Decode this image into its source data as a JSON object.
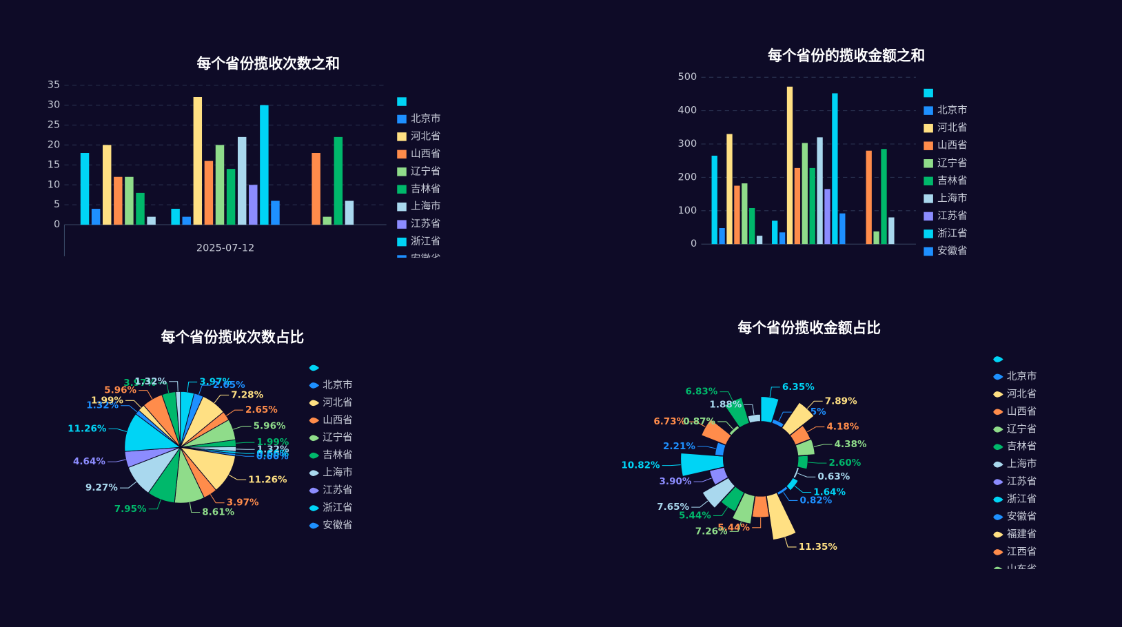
{
  "chart_data": [
    {
      "type": "bar",
      "title": "每个省份揽收次数之和",
      "categories": [
        null,
        "2025-07-12",
        null
      ],
      "ylim": [
        0,
        35
      ],
      "yticks": [
        0,
        5,
        10,
        15,
        20,
        25,
        30,
        35
      ],
      "grid": true,
      "series": [
        {
          "color": "#00d4f5",
          "values": [
            18,
            null,
            null
          ]
        },
        {
          "color": "#1e90ff",
          "values": [
            4,
            null,
            null
          ]
        },
        {
          "color": "#ffe083",
          "values": [
            20,
            null,
            null
          ]
        },
        {
          "color": "#ff8c4b",
          "values": [
            12,
            null,
            null
          ]
        },
        {
          "color": "#8fdc8a",
          "values": [
            12,
            null,
            null
          ]
        },
        {
          "color": "#00b86b",
          "values": [
            8,
            null,
            null
          ]
        },
        {
          "color": "#a9d8ee",
          "values": [
            2,
            null,
            null
          ]
        },
        {
          "color": "#00d4f5",
          "values": [
            null,
            4,
            null
          ]
        },
        {
          "color": "#1e90ff",
          "values": [
            null,
            2,
            null
          ]
        },
        {
          "color": "#ffe083",
          "values": [
            null,
            32,
            null
          ]
        },
        {
          "color": "#ff8c4b",
          "values": [
            null,
            16,
            null
          ]
        },
        {
          "color": "#8fdc8a",
          "values": [
            null,
            20,
            null
          ]
        },
        {
          "color": "#00b86b",
          "values": [
            null,
            14,
            null
          ]
        },
        {
          "color": "#a9d8ee",
          "values": [
            null,
            22,
            null
          ]
        },
        {
          "color": "#8c8cff",
          "values": [
            null,
            10,
            null
          ]
        },
        {
          "color": "#00d4f5",
          "values": [
            null,
            30,
            null
          ]
        },
        {
          "color": "#1e90ff",
          "values": [
            null,
            6,
            null
          ]
        },
        {
          "color": "#ff8c4b",
          "values": [
            null,
            null,
            18
          ]
        },
        {
          "color": "#8fdc8a",
          "values": [
            null,
            null,
            2
          ]
        },
        {
          "color": "#00b86b",
          "values": [
            null,
            null,
            22
          ]
        },
        {
          "color": "#a9d8ee",
          "values": [
            null,
            null,
            6
          ]
        }
      ],
      "legend": [
        {
          "color": "#00d4f5"
        },
        {
          "name": "北京市",
          "color": "#1e90ff"
        },
        {
          "name": "河北省",
          "color": "#ffe083"
        },
        {
          "name": "山西省",
          "color": "#ff8c4b"
        },
        {
          "name": "辽宁省",
          "color": "#8fdc8a"
        },
        {
          "name": "吉林省",
          "color": "#00b86b"
        },
        {
          "name": "上海市",
          "color": "#a9d8ee"
        },
        {
          "name": "江苏省",
          "color": "#8c8cff"
        },
        {
          "name": "浙江省",
          "color": "#00d4f5"
        },
        {
          "name": "安徽省",
          "color": "#1e90ff"
        }
      ]
    },
    {
      "type": "bar",
      "title": "每个省份的揽收金额之和",
      "categories": [
        null,
        null,
        null
      ],
      "ylim": [
        0,
        500
      ],
      "yticks": [
        0,
        100,
        200,
        300,
        400,
        500
      ],
      "grid": true,
      "series": [
        {
          "color": "#00d4f5",
          "values": [
            265,
            null,
            null
          ]
        },
        {
          "color": "#1e90ff",
          "values": [
            48,
            null,
            null
          ]
        },
        {
          "color": "#ffe083",
          "values": [
            330,
            null,
            null
          ]
        },
        {
          "color": "#ff8c4b",
          "values": [
            175,
            null,
            null
          ]
        },
        {
          "color": "#8fdc8a",
          "values": [
            182,
            null,
            null
          ]
        },
        {
          "color": "#00b86b",
          "values": [
            108,
            null,
            null
          ]
        },
        {
          "color": "#a9d8ee",
          "values": [
            25,
            null,
            null
          ]
        },
        {
          "color": "#00d4f5",
          "values": [
            null,
            70,
            null
          ]
        },
        {
          "color": "#1e90ff",
          "values": [
            null,
            35,
            null
          ]
        },
        {
          "color": "#ffe083",
          "values": [
            null,
            472,
            null
          ]
        },
        {
          "color": "#ff8c4b",
          "values": [
            null,
            228,
            null
          ]
        },
        {
          "color": "#8fdc8a",
          "values": [
            null,
            303,
            null
          ]
        },
        {
          "color": "#00b86b",
          "values": [
            null,
            228,
            null
          ]
        },
        {
          "color": "#a9d8ee",
          "values": [
            null,
            320,
            null
          ]
        },
        {
          "color": "#8c8cff",
          "values": [
            null,
            165,
            null
          ]
        },
        {
          "color": "#00d4f5",
          "values": [
            null,
            452,
            null
          ]
        },
        {
          "color": "#1e90ff",
          "values": [
            null,
            92,
            null
          ]
        },
        {
          "color": "#ff8c4b",
          "values": [
            null,
            null,
            280
          ]
        },
        {
          "color": "#8fdc8a",
          "values": [
            null,
            null,
            38
          ]
        },
        {
          "color": "#00b86b",
          "values": [
            null,
            null,
            285
          ]
        },
        {
          "color": "#a9d8ee",
          "values": [
            null,
            null,
            80
          ]
        }
      ],
      "legend": [
        {
          "color": "#00d4f5"
        },
        {
          "name": "北京市",
          "color": "#1e90ff"
        },
        {
          "name": "河北省",
          "color": "#ffe083"
        },
        {
          "name": "山西省",
          "color": "#ff8c4b"
        },
        {
          "name": "辽宁省",
          "color": "#8fdc8a"
        },
        {
          "name": "吉林省",
          "color": "#00b86b"
        },
        {
          "name": "上海市",
          "color": "#a9d8ee"
        },
        {
          "name": "江苏省",
          "color": "#8c8cff"
        },
        {
          "name": "浙江省",
          "color": "#00d4f5"
        },
        {
          "name": "安徽省",
          "color": "#1e90ff"
        }
      ]
    },
    {
      "type": "pie",
      "title": "每个省份揽收次数占比",
      "values": [
        3.97,
        2.65,
        7.28,
        2.65,
        5.96,
        1.99,
        1.32,
        0.66,
        0.66,
        11.26,
        3.97,
        8.61,
        7.95,
        9.27,
        4.64,
        11.26,
        1.32,
        1.99,
        5.96,
        3.97,
        1.32
      ],
      "value_labels": [
        "3.97%",
        "2.65%",
        "7.28%",
        "2.65%",
        "5.96%",
        "1.99%",
        "1.32%",
        "0.66%",
        "0.66%",
        "11.26%",
        "3.97%",
        "8.61%",
        "7.95%",
        "9.27%",
        "4.64%",
        "11.26%",
        "1.32%",
        "1.99%",
        "5.96%",
        "3.97%",
        "1.32%"
      ],
      "colors": [
        "#00d4f5",
        "#1e90ff",
        "#ffe083",
        "#ff8c4b",
        "#8fdc8a",
        "#00b86b",
        "#a9d8ee",
        "#00d4f5",
        "#1e90ff",
        "#ffe083",
        "#ff8c4b",
        "#8fdc8a",
        "#00b86b",
        "#a9d8ee",
        "#8c8cff",
        "#00d4f5",
        "#1e90ff",
        "#ffe083",
        "#ff8c4b",
        "#00b86b",
        "#a9d8ee"
      ],
      "legend": [
        {
          "color": "#00d4f5"
        },
        {
          "name": "北京市",
          "color": "#1e90ff"
        },
        {
          "name": "河北省",
          "color": "#ffe083"
        },
        {
          "name": "山西省",
          "color": "#ff8c4b"
        },
        {
          "name": "辽宁省",
          "color": "#8fdc8a"
        },
        {
          "name": "吉林省",
          "color": "#00b86b"
        },
        {
          "name": "上海市",
          "color": "#a9d8ee"
        },
        {
          "name": "江苏省",
          "color": "#8c8cff"
        },
        {
          "name": "浙江省",
          "color": "#00d4f5"
        },
        {
          "name": "安徽省",
          "color": "#1e90ff"
        }
      ]
    },
    {
      "type": "rose",
      "title": "每个省份揽收金额占比",
      "values": [
        6.35,
        1.15,
        7.89,
        4.18,
        4.38,
        2.6,
        0.63,
        1.64,
        0.82,
        11.35,
        5.44,
        7.26,
        5.44,
        7.65,
        3.9,
        10.82,
        2.21,
        6.73,
        0.87,
        6.83,
        1.88
      ],
      "value_labels": [
        "6.35%",
        "1.15%",
        "7.89%",
        "4.18%",
        "4.38%",
        "2.60%",
        "0.63%",
        "1.64%",
        "0.82%",
        "11.35%",
        "5.44%",
        "7.26%",
        "5.44%",
        "7.65%",
        "3.90%",
        "10.82%",
        "2.21%",
        "6.73%",
        "0.87%",
        "6.83%",
        "1.88%"
      ],
      "colors": [
        "#00d4f5",
        "#1e90ff",
        "#ffe083",
        "#ff8c4b",
        "#8fdc8a",
        "#00b86b",
        "#a9d8ee",
        "#00d4f5",
        "#1e90ff",
        "#ffe083",
        "#ff8c4b",
        "#8fdc8a",
        "#00b86b",
        "#a9d8ee",
        "#8c8cff",
        "#00d4f5",
        "#1e90ff",
        "#ff8c4b",
        "#8fdc8a",
        "#00b86b",
        "#a9d8ee"
      ],
      "legend": [
        {
          "color": "#00d4f5"
        },
        {
          "name": "北京市",
          "color": "#1e90ff"
        },
        {
          "name": "河北省",
          "color": "#ffe083"
        },
        {
          "name": "山西省",
          "color": "#ff8c4b"
        },
        {
          "name": "辽宁省",
          "color": "#8fdc8a"
        },
        {
          "name": "吉林省",
          "color": "#00b86b"
        },
        {
          "name": "上海市",
          "color": "#a9d8ee"
        },
        {
          "name": "江苏省",
          "color": "#8c8cff"
        },
        {
          "name": "浙江省",
          "color": "#00d4f5"
        },
        {
          "name": "安徽省",
          "color": "#1e90ff"
        },
        {
          "name": "福建省",
          "color": "#ffe083"
        },
        {
          "name": "江西省",
          "color": "#ff8c4b"
        },
        {
          "name": "山东省",
          "color": "#8fdc8a"
        }
      ]
    }
  ]
}
